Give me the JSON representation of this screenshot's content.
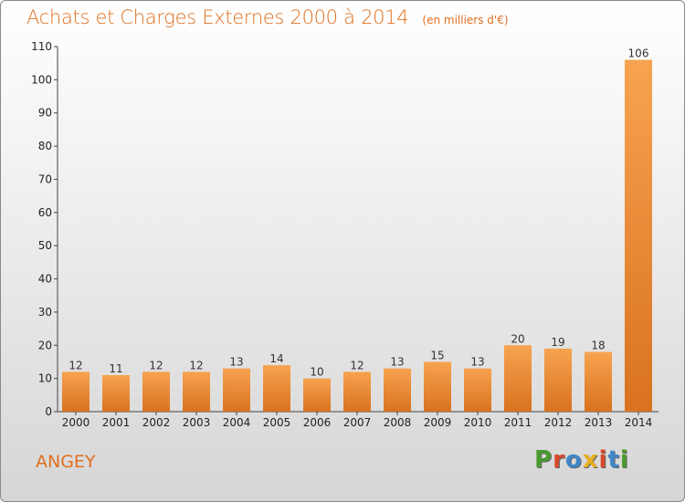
{
  "chart_data": {
    "type": "bar",
    "title": "Achats et Charges Externes 2000 à 2014",
    "unit": "(en milliers d'€)",
    "categories": [
      "2000",
      "2001",
      "2002",
      "2003",
      "2004",
      "2005",
      "2006",
      "2007",
      "2008",
      "2009",
      "2010",
      "2011",
      "2012",
      "2013",
      "2014"
    ],
    "values": [
      12,
      11,
      12,
      12,
      13,
      14,
      10,
      12,
      13,
      15,
      13,
      20,
      19,
      18,
      106
    ],
    "ylim": [
      0,
      110
    ],
    "yticks": [
      0,
      10,
      20,
      30,
      40,
      50,
      60,
      70,
      80,
      90,
      100,
      110
    ],
    "grid": false,
    "bar_color": "#f0913a"
  },
  "footer": {
    "commune": "ANGEY",
    "logo": [
      "P",
      "r",
      "o",
      "x",
      "i",
      "t",
      "i"
    ],
    "logo_colors": [
      "#4a9a2e",
      "#d94a2a",
      "#3f86c8",
      "#e8b020",
      "#d94a2a",
      "#3f86c8",
      "#4a9a2e"
    ]
  }
}
